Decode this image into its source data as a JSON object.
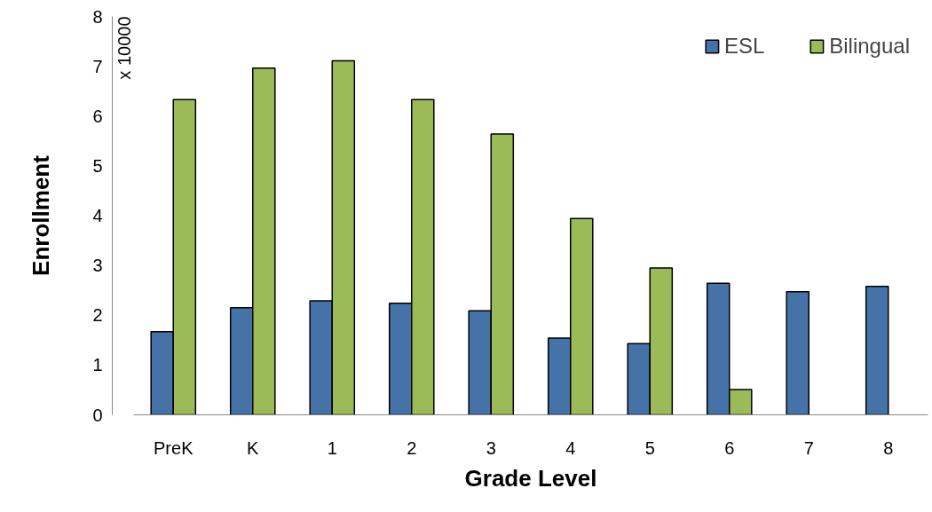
{
  "chart_data": {
    "type": "bar",
    "xlabel": "Grade Level",
    "ylabel": "Enrollment",
    "annotations": [
      "x 10000"
    ],
    "categories": [
      "PreK",
      "K",
      "1",
      "2",
      "3",
      "4",
      "5",
      "6",
      "7",
      "8"
    ],
    "series": [
      {
        "name": "ESL",
        "color": "#4572a7",
        "values": [
          1.67,
          2.15,
          2.29,
          2.24,
          2.09,
          1.54,
          1.43,
          2.64,
          2.47,
          2.58
        ]
      },
      {
        "name": "Bilingual",
        "color": "#9bbb59",
        "values": [
          6.33,
          6.96,
          7.11,
          6.33,
          5.64,
          3.94,
          2.95,
          0.51,
          null,
          null
        ]
      }
    ],
    "ylim": [
      0,
      8
    ],
    "yticks": [
      0,
      1,
      2,
      3,
      4,
      5,
      6,
      7,
      8
    ],
    "grid": false,
    "legend": "top right"
  }
}
